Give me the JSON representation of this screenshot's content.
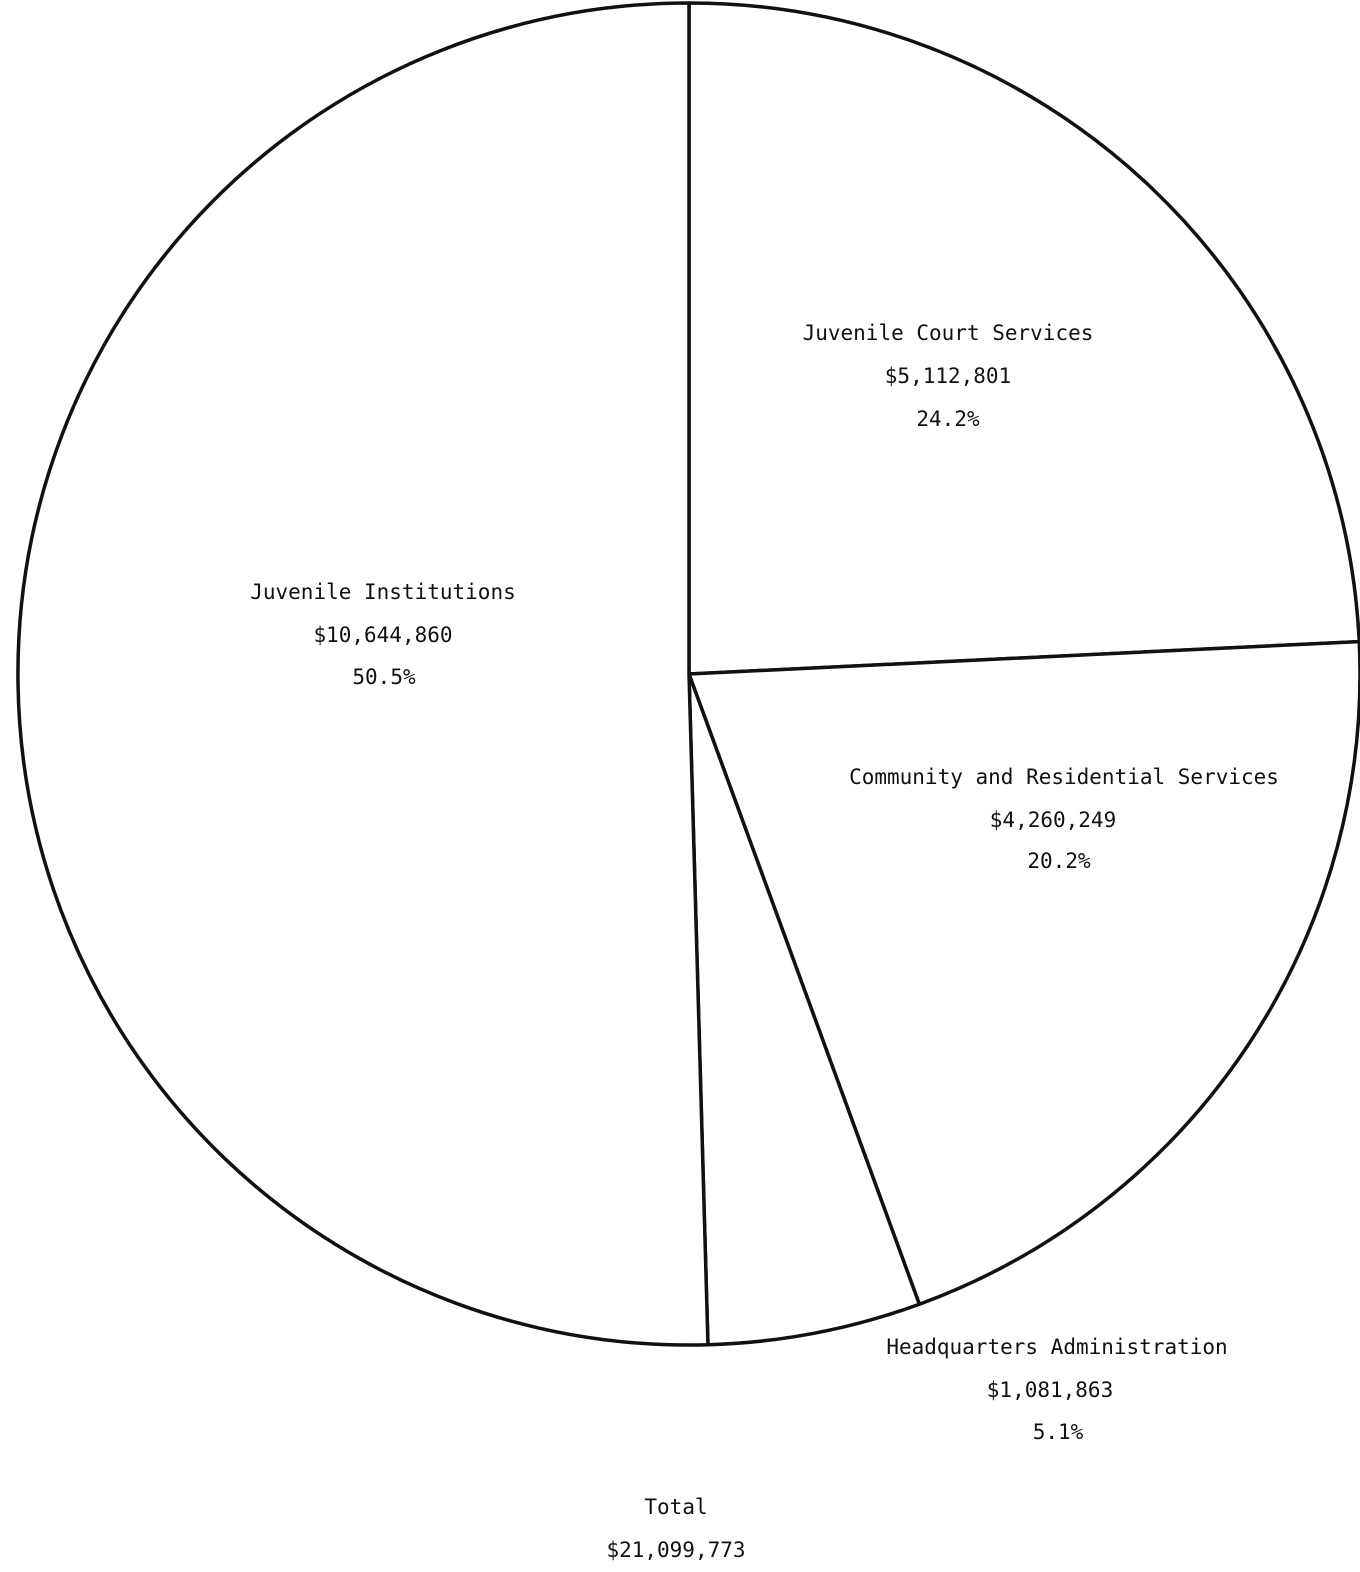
{
  "chart_data": {
    "type": "pie",
    "slices": [
      {
        "label": "Juvenile Court Services",
        "amount": "$5,112,801",
        "percent_text": "24.2%",
        "value": 5112801
      },
      {
        "label": "Community and Residential Services",
        "amount": "$4,260,249",
        "percent_text": "20.2%",
        "value": 4260249
      },
      {
        "label": "Headquarters Administration",
        "amount": "$1,081,863",
        "percent_text": "5.1%",
        "value": 1081863
      },
      {
        "label": "Juvenile Institutions",
        "amount": "$10,644,860",
        "percent_text": "50.5%",
        "value": 10644860
      }
    ],
    "total_label": "Total",
    "total_amount": "$21,099,773",
    "legend": "none"
  }
}
